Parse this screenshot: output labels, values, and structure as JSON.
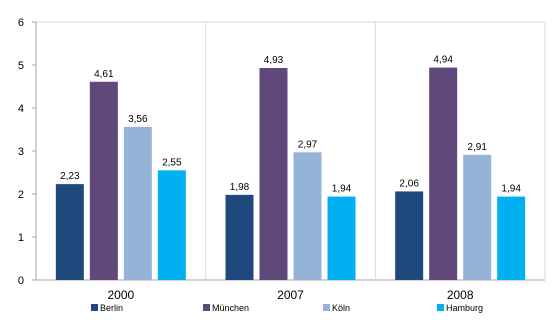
{
  "chart_data": {
    "type": "bar",
    "categories": [
      "2000",
      "2007",
      "2008"
    ],
    "series": [
      {
        "name": "Berlin",
        "values": [
          2.23,
          1.98,
          2.06
        ],
        "color": "#1F497D"
      },
      {
        "name": "München",
        "values": [
          4.61,
          4.93,
          4.94
        ],
        "color": "#60497A"
      },
      {
        "name": "Köln",
        "values": [
          3.56,
          2.97,
          2.91
        ],
        "color": "#95B3D7"
      },
      {
        "name": "Hamburg",
        "values": [
          2.55,
          1.94,
          1.94
        ],
        "color": "#00B0F0"
      }
    ],
    "value_labels": [
      [
        "2,23",
        "1,98",
        "2,06"
      ],
      [
        "4,61",
        "4,93",
        "4,94"
      ],
      [
        "3,56",
        "2,97",
        "2,91"
      ],
      [
        "2,55",
        "1,94",
        "1,94"
      ]
    ],
    "yticks": [
      "0",
      "1",
      "2",
      "3",
      "4",
      "5",
      "6"
    ],
    "ylim": [
      0,
      6
    ],
    "grid": "vertical category separators",
    "legend_position": "bottom"
  }
}
